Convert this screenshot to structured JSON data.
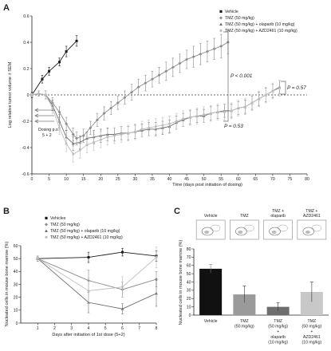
{
  "colors": {
    "vehicle": "#1a1a1a",
    "tmz": "#8c8c8c",
    "olaparib": "#6f6f6f",
    "azd": "#bdbdbd",
    "bar_vehicle": "#111111",
    "bar_tmz": "#9a9a9a",
    "bar_olaparib": "#6e6e6e",
    "bar_azd": "#c8c8c8"
  },
  "chart_data": [
    {
      "panel": "A",
      "type": "line",
      "xlabel": "Time (days post initiation of dosing)",
      "ylabel": "Log relative tumor volume ± SEM",
      "xlim": [
        0,
        80
      ],
      "ylim": [
        -0.6,
        0.6
      ],
      "xticks": [
        0,
        5,
        10,
        15,
        20,
        25,
        30,
        35,
        40,
        45,
        50,
        55,
        60,
        65,
        70,
        75,
        80
      ],
      "yticks": [
        -0.6,
        -0.4,
        -0.2,
        0,
        0.2,
        0.4,
        0.6
      ],
      "yticklabels": [
        "-0.6",
        "-0.4",
        "-0.2",
        "0",
        "0.2",
        "0.4",
        "0.6"
      ],
      "series": [
        {
          "name": "Vehicle",
          "marker": "square",
          "x": [
            0,
            3,
            5,
            8,
            10,
            13
          ],
          "y": [
            0,
            0.12,
            0.18,
            0.25,
            0.33,
            0.41
          ],
          "err": [
            0.02,
            0.03,
            0.03,
            0.03,
            0.04,
            0.04
          ]
        },
        {
          "name": "TMZ (50 mg/kg)",
          "marker": "diamond",
          "x": [
            0,
            2,
            4,
            6,
            8,
            10,
            12,
            13,
            15,
            17,
            19,
            21,
            23,
            25,
            27,
            29,
            31,
            33,
            35,
            37,
            39,
            41,
            43,
            45,
            47,
            49,
            51,
            53,
            55,
            57
          ],
          "y": [
            0,
            0.01,
            0.0,
            -0.06,
            -0.13,
            -0.22,
            -0.3,
            -0.33,
            -0.31,
            -0.25,
            -0.19,
            -0.14,
            -0.1,
            -0.06,
            -0.02,
            0.02,
            0.06,
            0.09,
            0.12,
            0.15,
            0.18,
            0.21,
            0.24,
            0.27,
            0.29,
            0.31,
            0.33,
            0.35,
            0.37,
            0.4
          ],
          "err": [
            0.01,
            0.02,
            0.03,
            0.04,
            0.04,
            0.05,
            0.05,
            0.05,
            0.05,
            0.05,
            0.05,
            0.05,
            0.05,
            0.05,
            0.05,
            0.06,
            0.06,
            0.06,
            0.06,
            0.06,
            0.07,
            0.07,
            0.07,
            0.07,
            0.08,
            0.08,
            0.08,
            0.08,
            0.09,
            0.09
          ]
        },
        {
          "name": "TMZ (50 mg/kg) + olaparib (10 mg/kg)",
          "marker": "triangle",
          "x": [
            0,
            2,
            4,
            6,
            8,
            10,
            12,
            14,
            16,
            18,
            20,
            22,
            24,
            26,
            28,
            30,
            32,
            34,
            36,
            38,
            40,
            42,
            44,
            46,
            48,
            50,
            52,
            54,
            56,
            58,
            60,
            62,
            64,
            66,
            68,
            70,
            72
          ],
          "y": [
            0,
            0.01,
            0.0,
            -0.08,
            -0.2,
            -0.32,
            -0.37,
            -0.36,
            -0.33,
            -0.32,
            -0.31,
            -0.3,
            -0.3,
            -0.29,
            -0.29,
            -0.28,
            -0.27,
            -0.26,
            -0.26,
            -0.25,
            -0.24,
            -0.21,
            -0.19,
            -0.17,
            -0.16,
            -0.16,
            -0.14,
            -0.13,
            -0.12,
            -0.12,
            -0.1,
            -0.09,
            -0.06,
            -0.03,
            0.0,
            0.03,
            0.06
          ],
          "err": [
            0.01,
            0.02,
            0.03,
            0.04,
            0.05,
            0.05,
            0.05,
            0.05,
            0.05,
            0.05,
            0.05,
            0.05,
            0.05,
            0.05,
            0.05,
            0.05,
            0.05,
            0.05,
            0.05,
            0.05,
            0.05,
            0.05,
            0.05,
            0.05,
            0.05,
            0.05,
            0.05,
            0.05,
            0.05,
            0.05,
            0.05,
            0.05,
            0.05,
            0.05,
            0.05,
            0.05,
            0.05
          ]
        },
        {
          "name": "TMZ (50 mg/kg) + AZD2461 (10 mg/kg)",
          "marker": "circle",
          "x": [
            0,
            2,
            4,
            6,
            8,
            10,
            12,
            14,
            16,
            18,
            20,
            22,
            24,
            26,
            28,
            30,
            32,
            34,
            36,
            38,
            40,
            42,
            44,
            46,
            48,
            50,
            52,
            54,
            56,
            58,
            60,
            62,
            64,
            66,
            68,
            70,
            72
          ],
          "y": [
            0,
            0.01,
            0.0,
            -0.1,
            -0.25,
            -0.37,
            -0.45,
            -0.42,
            -0.38,
            -0.36,
            -0.34,
            -0.32,
            -0.31,
            -0.3,
            -0.29,
            -0.28,
            -0.26,
            -0.25,
            -0.24,
            -0.23,
            -0.22,
            -0.2,
            -0.18,
            -0.17,
            -0.16,
            -0.15,
            -0.14,
            -0.13,
            -0.13,
            -0.12,
            -0.1,
            -0.09,
            -0.06,
            -0.03,
            0.0,
            0.03,
            0.05
          ],
          "err": [
            0.01,
            0.02,
            0.03,
            0.04,
            0.05,
            0.06,
            0.06,
            0.06,
            0.06,
            0.06,
            0.06,
            0.06,
            0.06,
            0.06,
            0.06,
            0.06,
            0.06,
            0.06,
            0.06,
            0.06,
            0.06,
            0.06,
            0.06,
            0.06,
            0.06,
            0.06,
            0.06,
            0.06,
            0.06,
            0.06,
            0.06,
            0.06,
            0.06,
            0.06,
            0.06,
            0.06,
            0.06
          ]
        }
      ],
      "annotations": {
        "p1": "P < 0.001",
        "p2": "P = 0.53",
        "p3": "P = 0.57",
        "dosing": "Dosing p.o.",
        "dosing_schedule": "5 + 2"
      },
      "legend_position": "top-right"
    },
    {
      "panel": "B",
      "type": "line",
      "xlabel": "Days after initiation of 1st dose (5+2)",
      "ylabel": "Nucleated cells in mouse bone marrow (%)",
      "xlim": [
        0,
        8
      ],
      "ylim": [
        0,
        60
      ],
      "xticks": [
        1,
        2,
        3,
        4,
        5,
        6,
        7,
        8
      ],
      "yticks": [
        0,
        10,
        20,
        30,
        40,
        50,
        60
      ],
      "series": [
        {
          "name": "Vehicles",
          "marker": "square",
          "x": [
            1,
            4,
            6,
            8
          ],
          "y": [
            50,
            51,
            55,
            52
          ],
          "err": [
            2,
            4,
            3,
            4
          ]
        },
        {
          "name": "TMZ (50 mg/kg)",
          "marker": "diamond",
          "x": [
            1,
            4,
            6,
            8
          ],
          "y": [
            50,
            33,
            26,
            34
          ],
          "err": [
            2,
            8,
            6,
            6
          ]
        },
        {
          "name": "TMZ (50 mg/kg) + olaparib (10 mg/kg)",
          "marker": "triangle",
          "x": [
            1,
            4,
            6,
            8
          ],
          "y": [
            50,
            16,
            11,
            23
          ],
          "err": [
            2,
            8,
            4,
            10
          ]
        },
        {
          "name": "TMZ (50 mg/kg) + AZD2461 (10 mg/kg)",
          "marker": "circle",
          "x": [
            1,
            4,
            6,
            8
          ],
          "y": [
            50,
            25,
            28,
            51
          ],
          "err": [
            2,
            10,
            8,
            8
          ]
        }
      ],
      "legend_position": "top"
    },
    {
      "panel": "C",
      "type": "bar",
      "ylabel": "Nucleated cells in mouse bone marrow (%)",
      "ylim": [
        0,
        80
      ],
      "yticks": [
        0,
        10,
        20,
        30,
        40,
        50,
        60,
        70,
        80
      ],
      "categories": [
        "Vehicle",
        "TMZ (50 mg/kg)",
        "TMZ (50 mg/kg) + olaparib (10 mg/kg)",
        "TMZ (50 mg/kg) + AZD2461 (10 mg/kg)"
      ],
      "category_lines": [
        [
          "Vehicle"
        ],
        [
          "TMZ",
          "(50 mg/kg)"
        ],
        [
          "TMZ",
          "(50 mg/kg)",
          "+",
          "olaparib",
          "(10 mg/kg)"
        ],
        [
          "TMZ",
          "(50 mg/kg)",
          "+",
          "AZD2461",
          "(10 mg/kg)"
        ]
      ],
      "values": [
        56,
        25,
        10,
        28
      ],
      "err": [
        5,
        10,
        5,
        12
      ],
      "inset_labels": [
        [
          "Vehicle"
        ],
        [
          "TMZ"
        ],
        [
          "TMZ +",
          "olaparib"
        ],
        [
          "TMZ +",
          "AZD2461"
        ]
      ]
    }
  ]
}
